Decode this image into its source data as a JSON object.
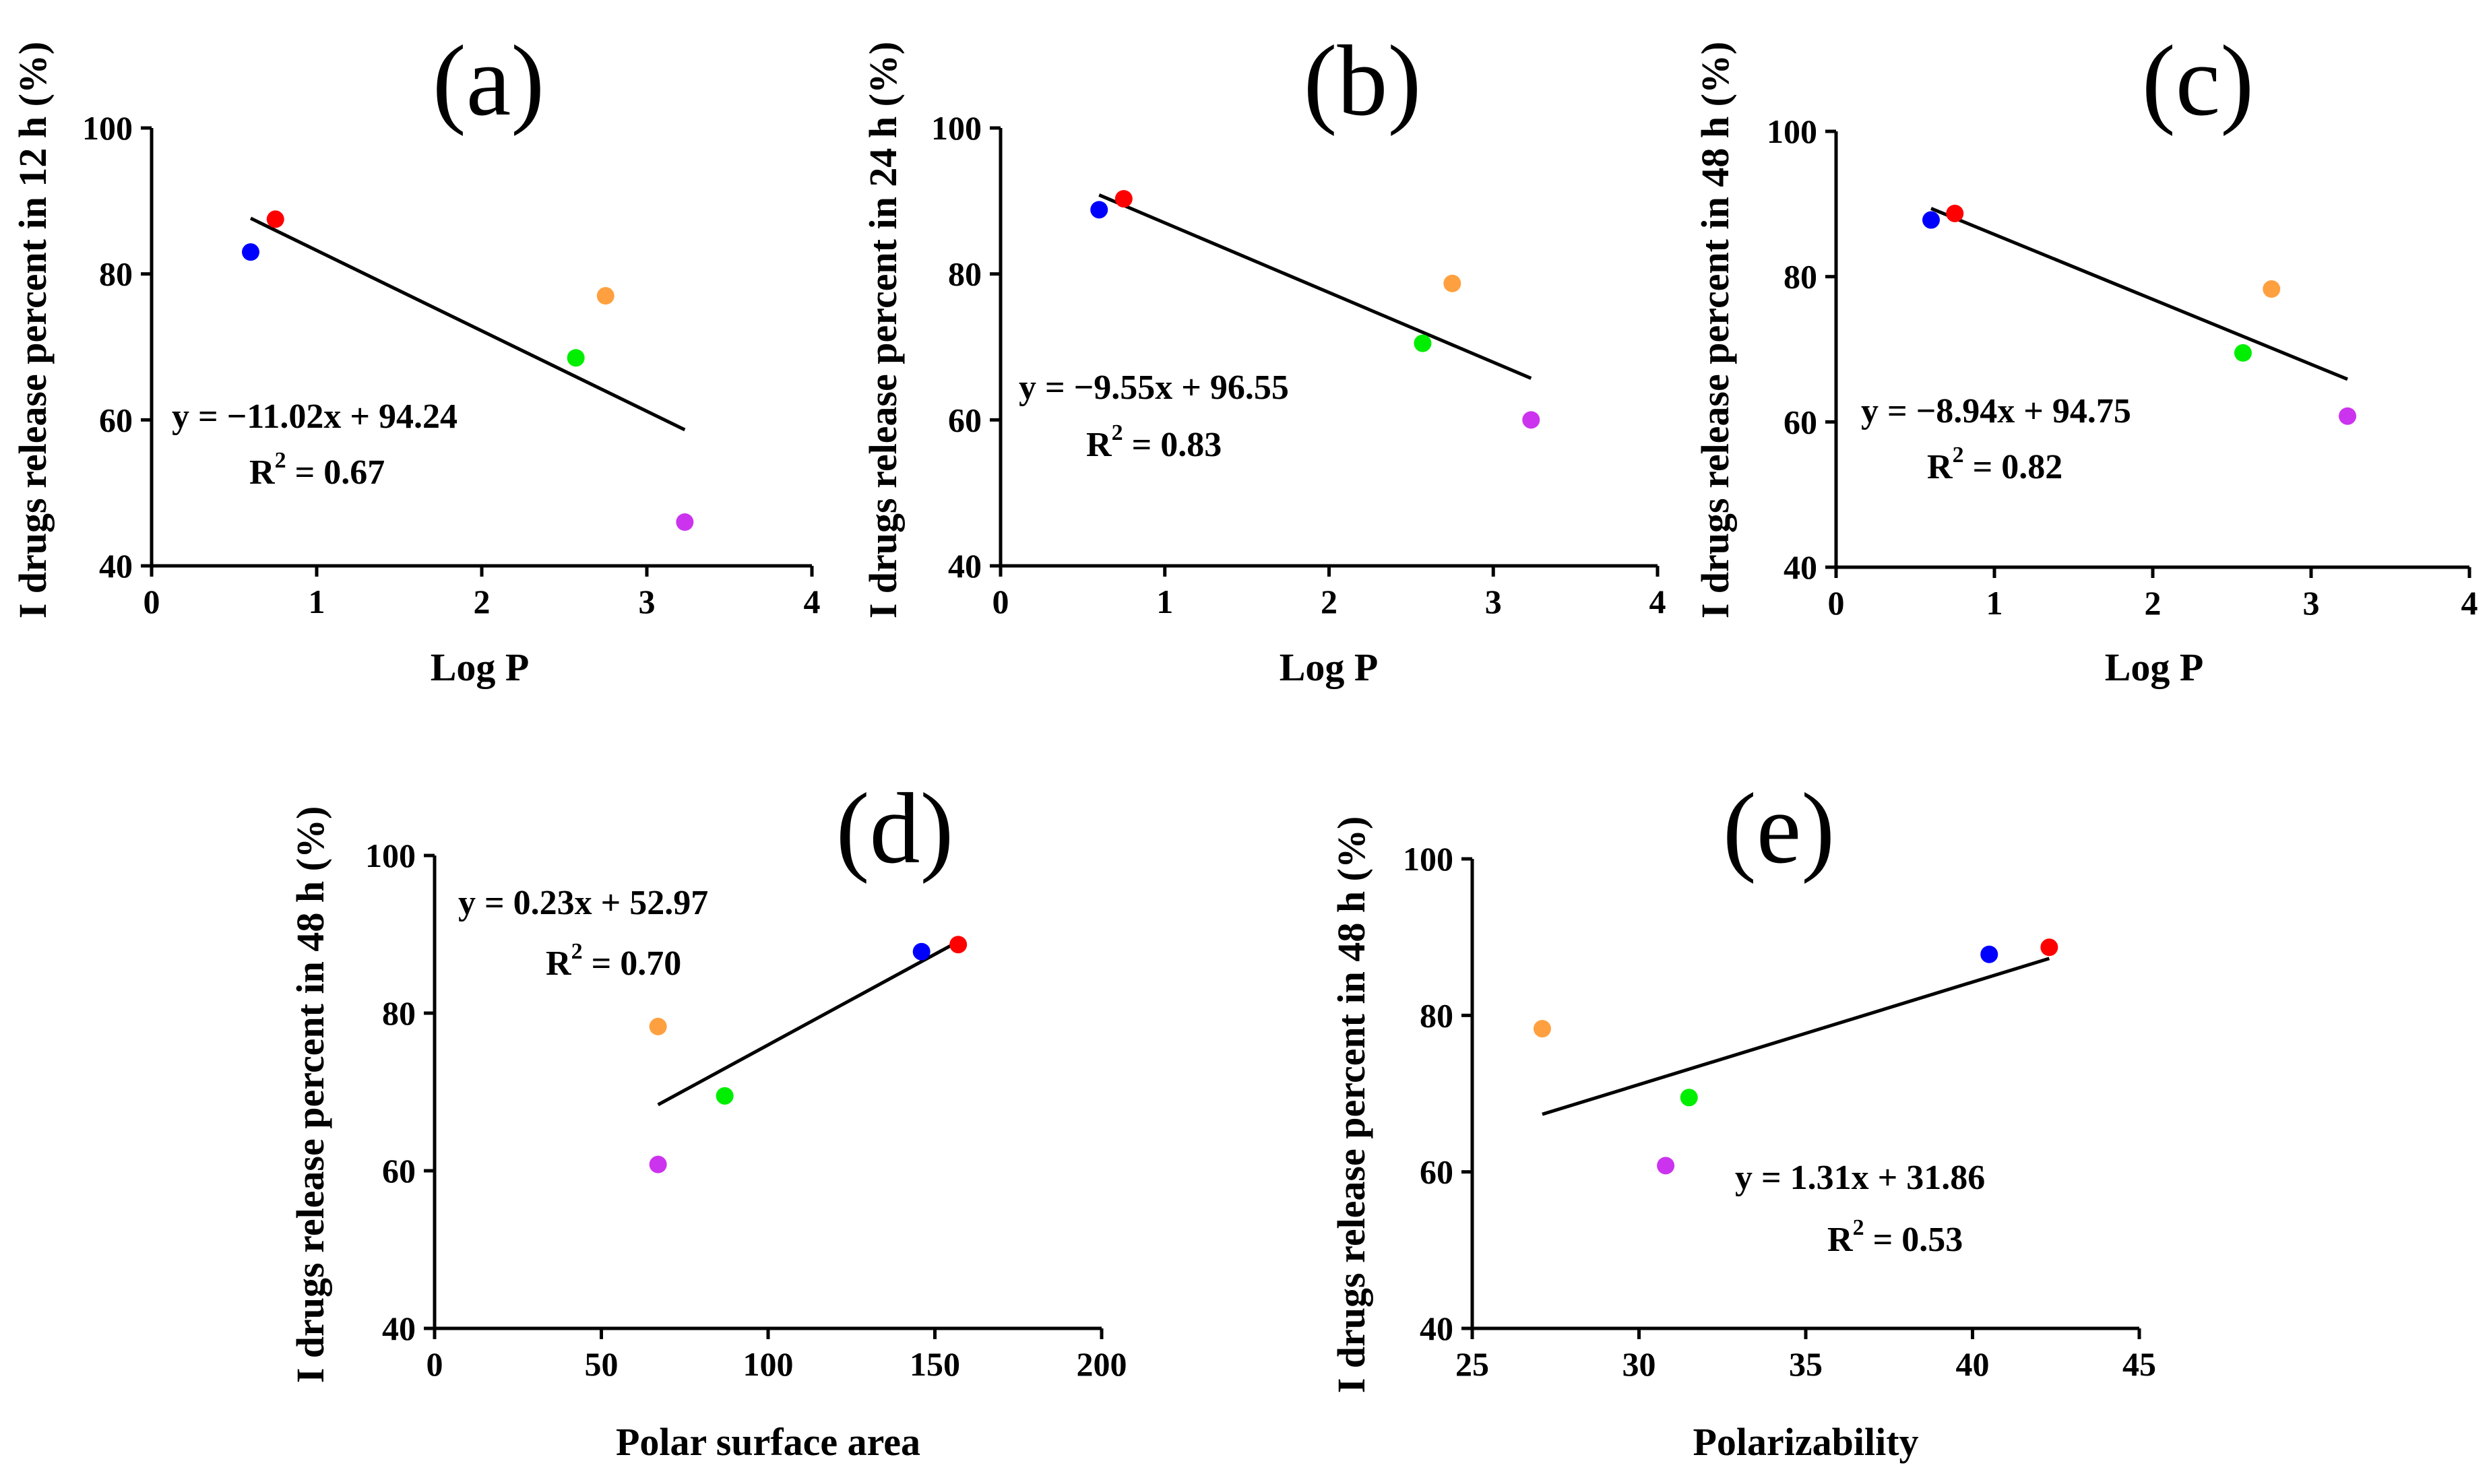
{
  "figure": {
    "name": "drug-release-correlation-figure"
  },
  "colors": {
    "blue": "#0000ff",
    "red": "#ff0000",
    "orange": "#ffa040",
    "green": "#00ee00",
    "purple": "#cc33ee"
  },
  "chart_data": [
    {
      "panel": "(a)",
      "type": "scatter",
      "xlabel": "Log P",
      "ylabel": "I drugs release percent in 12 h (%)",
      "xlim": [
        0,
        4
      ],
      "ylim": [
        40,
        100
      ],
      "xticks": [
        0,
        1,
        2,
        3,
        4
      ],
      "yticks": [
        40,
        60,
        80,
        100
      ],
      "points": [
        {
          "x": 0.6,
          "y": 83.0,
          "color": "blue"
        },
        {
          "x": 0.75,
          "y": 87.5,
          "color": "red"
        },
        {
          "x": 2.57,
          "y": 68.5,
          "color": "green"
        },
        {
          "x": 2.75,
          "y": 77.0,
          "color": "orange"
        },
        {
          "x": 3.23,
          "y": 46.0,
          "color": "purple"
        }
      ],
      "fit": {
        "slope": -11.02,
        "intercept": 94.24,
        "x_range": [
          0.6,
          3.23
        ]
      },
      "equation": "y = −11.02x + 94.24",
      "r2_prefix": "R",
      "r2_sup": "2",
      "r2_value": " = 0.67"
    },
    {
      "panel": "(b)",
      "type": "scatter",
      "xlabel": "Log P",
      "ylabel": "I drugs release percent in 24 h (%)",
      "xlim": [
        0,
        4
      ],
      "ylim": [
        40,
        100
      ],
      "xticks": [
        0,
        1,
        2,
        3,
        4
      ],
      "yticks": [
        40,
        60,
        80,
        100
      ],
      "points": [
        {
          "x": 0.6,
          "y": 88.8,
          "color": "blue"
        },
        {
          "x": 0.75,
          "y": 90.3,
          "color": "red"
        },
        {
          "x": 2.57,
          "y": 70.5,
          "color": "green"
        },
        {
          "x": 2.75,
          "y": 78.7,
          "color": "orange"
        },
        {
          "x": 3.23,
          "y": 60.0,
          "color": "purple"
        }
      ],
      "fit": {
        "slope": -9.55,
        "intercept": 96.55,
        "x_range": [
          0.6,
          3.23
        ]
      },
      "equation": "y = −9.55x + 96.55",
      "r2_prefix": "R",
      "r2_sup": "2",
      "r2_value": " = 0.83"
    },
    {
      "panel": "(c)",
      "type": "scatter",
      "xlabel": "Log P",
      "ylabel": "I drugs release percent in 48 h (%)",
      "xlim": [
        0,
        4
      ],
      "ylim": [
        40,
        100
      ],
      "xticks": [
        0,
        1,
        2,
        3,
        4
      ],
      "yticks": [
        40,
        60,
        80,
        100
      ],
      "points": [
        {
          "x": 0.6,
          "y": 87.8,
          "color": "blue"
        },
        {
          "x": 0.75,
          "y": 88.7,
          "color": "red"
        },
        {
          "x": 2.57,
          "y": 69.5,
          "color": "green"
        },
        {
          "x": 2.75,
          "y": 78.3,
          "color": "orange"
        },
        {
          "x": 3.23,
          "y": 60.8,
          "color": "purple"
        }
      ],
      "fit": {
        "slope": -8.94,
        "intercept": 94.75,
        "x_range": [
          0.6,
          3.23
        ]
      },
      "equation": "y = −8.94x + 94.75",
      "r2_prefix": "R",
      "r2_sup": "2",
      "r2_value": " = 0.82"
    },
    {
      "panel": "(d)",
      "type": "scatter",
      "xlabel": "Polar surface area",
      "ylabel": "I drugs release percent in 48 h (%)",
      "xlim": [
        0,
        200
      ],
      "ylim": [
        40,
        100
      ],
      "xticks": [
        0,
        50,
        100,
        150,
        200
      ],
      "yticks": [
        40,
        60,
        80,
        100
      ],
      "points": [
        {
          "x": 146,
          "y": 87.8,
          "color": "blue"
        },
        {
          "x": 157,
          "y": 88.7,
          "color": "red"
        },
        {
          "x": 87,
          "y": 69.5,
          "color": "green"
        },
        {
          "x": 67,
          "y": 78.3,
          "color": "orange"
        },
        {
          "x": 67,
          "y": 60.8,
          "color": "purple"
        }
      ],
      "fit": {
        "slope": 0.23,
        "intercept": 52.97,
        "x_range": [
          67,
          157
        ]
      },
      "equation": "y = 0.23x + 52.97",
      "r2_prefix": "R",
      "r2_sup": "2",
      "r2_value": " = 0.70"
    },
    {
      "panel": "(e)",
      "type": "scatter",
      "xlabel": "Polarizability",
      "ylabel": "I drugs release percent in 48 h (%)",
      "xlim": [
        25,
        45
      ],
      "ylim": [
        40,
        100
      ],
      "xticks": [
        25,
        30,
        35,
        40,
        45
      ],
      "yticks": [
        40,
        60,
        80,
        100
      ],
      "points": [
        {
          "x": 40.5,
          "y": 87.8,
          "color": "blue"
        },
        {
          "x": 42.3,
          "y": 88.7,
          "color": "red"
        },
        {
          "x": 31.5,
          "y": 69.5,
          "color": "green"
        },
        {
          "x": 27.1,
          "y": 78.3,
          "color": "orange"
        },
        {
          "x": 30.8,
          "y": 60.8,
          "color": "purple"
        }
      ],
      "fit": {
        "slope": 1.31,
        "intercept": 31.86,
        "x_range": [
          27.1,
          42.3
        ]
      },
      "equation": "y = 1.31x + 31.86",
      "r2_prefix": "R",
      "r2_sup": "2",
      "r2_value": " = 0.53"
    }
  ]
}
